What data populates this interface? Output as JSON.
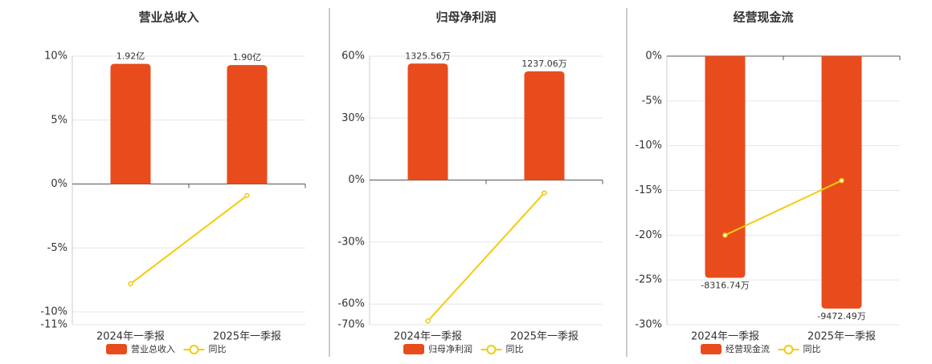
{
  "chart_data": [
    {
      "type": "bar-line",
      "title": "营业总收入",
      "categories": [
        "2024年一季报",
        "2025年一季报"
      ],
      "series": [
        {
          "name": "营业总收入",
          "color": "#e84c1c",
          "values": [
            1.92,
            1.9
          ],
          "value_labels": [
            "1.92亿",
            "1.90亿"
          ]
        },
        {
          "name": "同比",
          "color": "#f2cc0c",
          "values": [
            -7.8,
            -0.9
          ]
        }
      ],
      "ylim": [
        -11,
        10
      ],
      "yticks": [
        {
          "value": 10,
          "label": "10%"
        },
        {
          "value": 5,
          "label": "5%"
        },
        {
          "value": 0,
          "label": "0%"
        },
        {
          "value": -5,
          "label": "-5%"
        },
        {
          "value": -10,
          "label": "-10%"
        },
        {
          "value": -11,
          "label": "-11%"
        }
      ],
      "grid": true
    },
    {
      "type": "bar-line",
      "title": "归母净利润",
      "categories": [
        "2024年一季报",
        "2025年一季报"
      ],
      "series": [
        {
          "name": "归母净利润",
          "color": "#e84c1c",
          "values": [
            1325.56,
            1237.06
          ],
          "value_labels": [
            "1325.56万",
            "1237.06万"
          ]
        },
        {
          "name": "同比",
          "color": "#f2cc0c",
          "values": [
            -68.2,
            -6.2
          ]
        }
      ],
      "ylim": [
        -70,
        60
      ],
      "yticks": [
        {
          "value": 60,
          "label": "60%"
        },
        {
          "value": 30,
          "label": "30%"
        },
        {
          "value": 0,
          "label": "0%"
        },
        {
          "value": -30,
          "label": "-30%"
        },
        {
          "value": -60,
          "label": "-60%"
        },
        {
          "value": -70,
          "label": "-70%"
        }
      ],
      "grid": true
    },
    {
      "type": "bar-line",
      "title": "经营现金流",
      "categories": [
        "2024年一季报",
        "2025年一季报"
      ],
      "series": [
        {
          "name": "经营现金流",
          "color": "#e84c1c",
          "values": [
            -8316.74,
            -9472.49
          ],
          "value_labels": [
            "-8316.74万",
            "-9472.49万"
          ]
        },
        {
          "name": "同比",
          "color": "#f2cc0c",
          "values": [
            -20.0,
            -13.9
          ]
        }
      ],
      "ylim": [
        -30,
        0
      ],
      "yticks": [
        {
          "value": 0,
          "label": "0%"
        },
        {
          "value": -5,
          "label": "-5%"
        },
        {
          "value": -10,
          "label": "-10%"
        },
        {
          "value": -15,
          "label": "-15%"
        },
        {
          "value": -20,
          "label": "-20%"
        },
        {
          "value": -25,
          "label": "-25%"
        },
        {
          "value": -30,
          "label": "-30%"
        }
      ],
      "grid": true
    }
  ]
}
